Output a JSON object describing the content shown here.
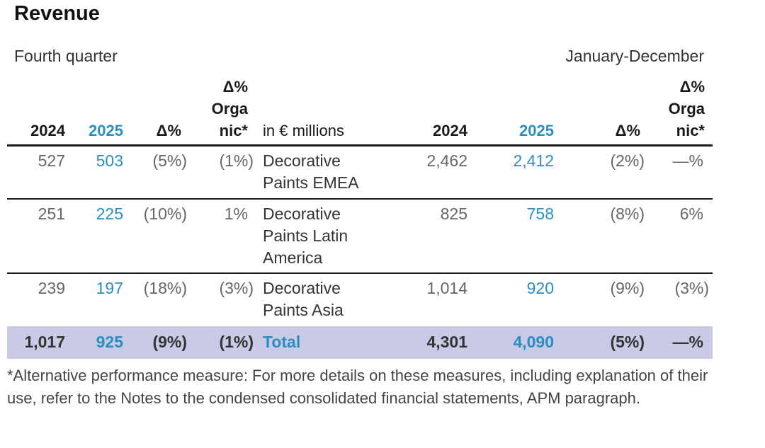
{
  "title": "Revenue",
  "left_period": "Fourth quarter",
  "right_period": "January-December",
  "headers": {
    "y2024": "2024",
    "y2025": "2025",
    "delta": "Δ%",
    "organic": "Δ%\nOrga\nnic*",
    "unit": "in € millions"
  },
  "rows": [
    {
      "q2024": "527",
      "q2025": "503",
      "qdelta": "(5%)",
      "qorg": "(1%)",
      "label": "Decorative\nPaints EMEA",
      "y2024": "2,462",
      "y2025": "2,412",
      "ydelta": "(2%)",
      "yorg": "—%"
    },
    {
      "q2024": "251",
      "q2025": "225",
      "qdelta": "(10%)",
      "qorg": "1%",
      "label": "Decorative\nPaints Latin\nAmerica",
      "y2024": "825",
      "y2025": "758",
      "ydelta": "(8%)",
      "yorg": "6%"
    },
    {
      "q2024": "239",
      "q2025": "197",
      "qdelta": "(18%)",
      "qorg": "(3%)",
      "label": "Decorative\nPaints Asia",
      "y2024": "1,014",
      "y2025": "920",
      "ydelta": "(9%)",
      "yorg": "(3%)"
    }
  ],
  "total": {
    "q2024": "1,017",
    "q2025": "925",
    "qdelta": "(9%)",
    "qorg": "(1%)",
    "label": "Total",
    "y2024": "4,301",
    "y2025": "4,090",
    "ydelta": "(5%)",
    "yorg": "—%"
  },
  "footnote": "*Alternative performance measure: For more details on these measures, including explanation of their use, refer to the Notes to the condensed consolidated financial statements, APM paragraph.",
  "colors": {
    "accent": "#2a8fc0",
    "total_bg": "#c9cbe6"
  }
}
